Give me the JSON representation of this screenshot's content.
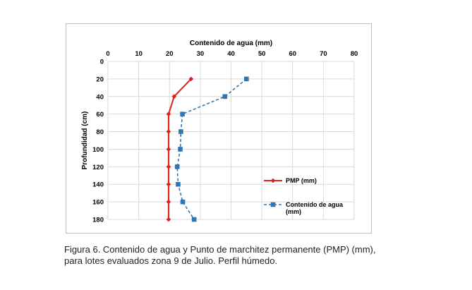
{
  "chart_data": {
    "type": "line",
    "orientation": "vertical-profile",
    "xlabel": "Contenido de agua (mm)",
    "ylabel": "Profundidad (cm)",
    "xlim": [
      0,
      80
    ],
    "ylim": [
      0,
      180
    ],
    "x_ticks": [
      0,
      10,
      20,
      30,
      40,
      50,
      60,
      70,
      80
    ],
    "y_ticks": [
      0,
      20,
      40,
      60,
      80,
      100,
      120,
      140,
      160,
      180
    ],
    "x_axis_position": "top",
    "y_axis_inverted": true,
    "grid": true,
    "legend_position": "right",
    "series": [
      {
        "name": "PMP (mm)",
        "color": "#e0201b",
        "marker": "diamond",
        "line_style": "solid",
        "depth": [
          20,
          40,
          60,
          80,
          100,
          120,
          140,
          160,
          180
        ],
        "values": [
          27,
          21.5,
          19.7,
          19.7,
          19.7,
          19.7,
          19.7,
          19.7,
          19.7
        ]
      },
      {
        "name": "Contenido de agua (mm)",
        "legend_lines": [
          "Contenido de agua",
          "(mm)"
        ],
        "color": "#2e75b6",
        "marker": "square",
        "line_style": "dashed",
        "depth": [
          20,
          40,
          60,
          80,
          100,
          120,
          140,
          160,
          180
        ],
        "values": [
          45,
          38,
          24.2,
          23.7,
          23.5,
          22.5,
          22.8,
          24.3,
          28
        ]
      }
    ]
  },
  "caption": {
    "line1": "Figura 6. Contenido de agua y Punto de marchitez permanente (PMP) (mm),",
    "line2": "para lotes evaluados zona 9 de Julio.  Perfil húmedo."
  }
}
